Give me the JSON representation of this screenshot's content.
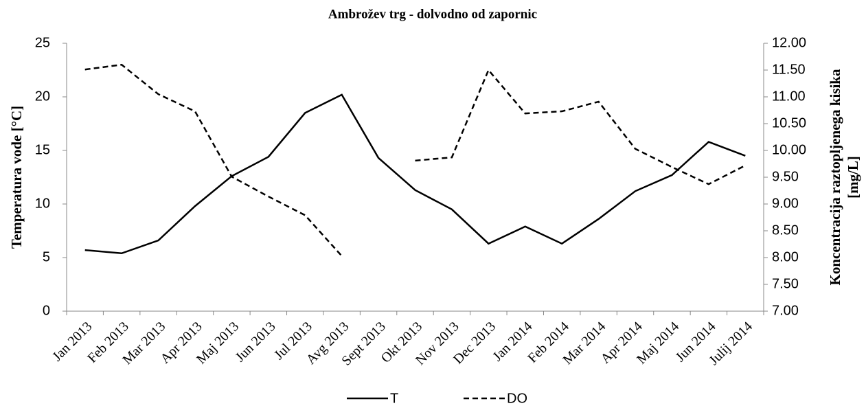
{
  "chart_data": {
    "type": "line",
    "title": "Ambrožev  trg - dolvodno  od zapornic",
    "ylabel": "Temperatura  vode [°C]",
    "y2label": [
      "Koncentracija  raztopljenega  kisika",
      "[mg/L]"
    ],
    "categories": [
      "Jan 2013",
      "Feb 2013",
      "Mar 2013",
      "Apr 2013",
      "Maj 2013",
      "Jun 2013",
      "Jul 2013",
      "Avg 2013",
      "Sept 2013",
      "Okt 2013",
      "Nov 2013",
      "Dec 2013",
      "Jan 2014",
      "Feb 2014",
      "Mar 2014",
      "Apr 2014",
      "Maj 2014",
      "Jun 2014",
      "Julij 2014"
    ],
    "series": [
      {
        "name": "T",
        "color": "#000000",
        "dash": false,
        "values": [
          5.7,
          5.4,
          6.6,
          9.8,
          12.6,
          14.4,
          18.5,
          20.2,
          14.3,
          11.3,
          9.5,
          6.3,
          7.9,
          6.3,
          8.6,
          11.2,
          12.7,
          15.8,
          14.5
        ]
      },
      {
        "name": "DO",
        "color": "#000000",
        "dash": true,
        "axis": "y2",
        "values": [
          11.51,
          11.6,
          11.05,
          10.73,
          9.51,
          9.14,
          8.79,
          8.03,
          null,
          9.81,
          9.87,
          11.5,
          10.69,
          10.73,
          10.91,
          10.03,
          9.69,
          9.37,
          9.72
        ]
      }
    ],
    "ylim": [
      0,
      25
    ],
    "yticks": [
      0,
      5,
      10,
      15,
      20,
      25
    ],
    "y2lim": [
      7,
      12
    ],
    "y2ticks": [
      {
        "value": 7,
        "label": "7.00"
      },
      {
        "value": 7.5,
        "label": "7.50"
      },
      {
        "value": 8,
        "label": "8.00"
      },
      {
        "value": 8.5,
        "label": "8.50"
      },
      {
        "value": 9,
        "label": "9.00"
      },
      {
        "value": 9.5,
        "label": "9.50"
      },
      {
        "value": 10,
        "label": "10.00"
      },
      {
        "value": 10.5,
        "label": "10.50"
      },
      {
        "value": 11,
        "label": "11.00"
      },
      {
        "value": 11.5,
        "label": "11.50"
      },
      {
        "value": 12,
        "label": "12.00"
      }
    ],
    "grid": false,
    "legend": "bottom"
  }
}
